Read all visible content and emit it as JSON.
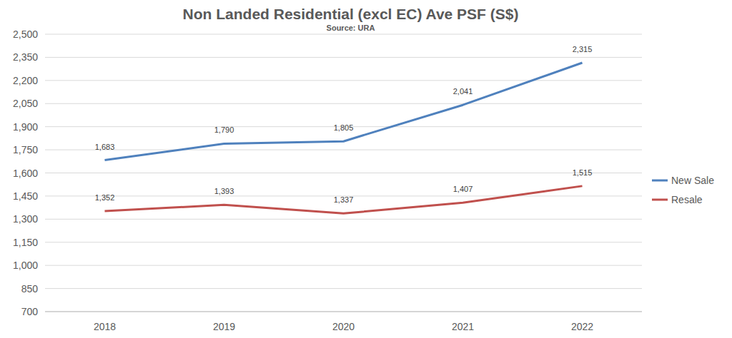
{
  "chart_data": {
    "type": "line",
    "title": "Non Landed Residential (excl EC) Ave PSF (S$)",
    "subtitle": "Source: URA",
    "categories": [
      "2018",
      "2019",
      "2020",
      "2021",
      "2022"
    ],
    "series": [
      {
        "name": "New Sale",
        "color": "#4f81bd",
        "values": [
          1683,
          1790,
          1805,
          2041,
          2315
        ],
        "value_labels": [
          "1,683",
          "1,790",
          "1,805",
          "2,041",
          "2,315"
        ]
      },
      {
        "name": "Resale",
        "color": "#c0504d",
        "values": [
          1352,
          1393,
          1337,
          1407,
          1515
        ],
        "value_labels": [
          "1,352",
          "1,393",
          "1,337",
          "1,407",
          "1,515"
        ]
      }
    ],
    "ylim": [
      700,
      2500
    ],
    "yticks": [
      700,
      850,
      {
        "value": 1000,
        "label": "1,000"
      },
      {
        "value": 1150,
        "label": "1,150"
      },
      {
        "value": 1300,
        "label": "1,300"
      },
      {
        "value": 1450,
        "label": "1,450"
      },
      {
        "value": 1600,
        "label": "1,600"
      },
      {
        "value": 1750,
        "label": "1,750"
      },
      {
        "value": 1900,
        "label": "1,900"
      },
      {
        "value": 2050,
        "label": "2,050"
      },
      {
        "value": 2200,
        "label": "2,200"
      },
      {
        "value": 2350,
        "label": "2,350"
      },
      {
        "value": 2500,
        "label": "2,500"
      }
    ],
    "grid": true,
    "legend": "right",
    "data_labels": true
  }
}
